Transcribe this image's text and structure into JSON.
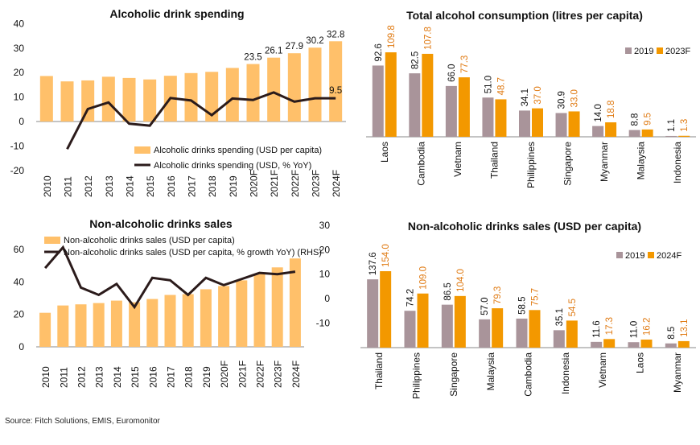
{
  "source": "Source: Fitch Solutions, EMIS, Euromonitor",
  "colors": {
    "bar": "#FFC06A",
    "line": "#2B1B1B",
    "grey": "#A9949A",
    "orange": "#F39800",
    "orange_text": "#E07B14"
  },
  "chart_data": [
    {
      "id": "spending",
      "type": "bar",
      "title": "Alcoholic drink spending",
      "categories": [
        "2010",
        "2011",
        "2012",
        "2013",
        "2014",
        "2015",
        "2016",
        "2017",
        "2018",
        "2019",
        "2020F",
        "2021F",
        "2022F",
        "2023F",
        "2024F"
      ],
      "series": [
        {
          "name": "Alcoholic drinks spending (USD per capita)",
          "type": "bar",
          "values": [
            18.6,
            16.4,
            16.8,
            18.3,
            17.8,
            17.2,
            18.7,
            19.8,
            20.3,
            21.9,
            23.5,
            26.1,
            27.9,
            30.2,
            32.8
          ]
        },
        {
          "name": "Alcoholic drinks spending (USD, % YoY)",
          "type": "line",
          "values": [
            null,
            -11.3,
            5.1,
            7.8,
            -0.9,
            -1.7,
            9.6,
            8.6,
            2.6,
            9.4,
            8.8,
            11.9,
            8.1,
            9.5,
            9.5
          ]
        }
      ],
      "data_labels": {
        "10": "23.5",
        "11": "26.1",
        "12": "27.9",
        "13": "30.2",
        "14": "32.8",
        "line_14": "9.5"
      },
      "yticks": [
        "40",
        "30",
        "20",
        "10",
        "0",
        "-10",
        "-20"
      ],
      "ylim": [
        -20,
        40
      ],
      "legend": "bottom-right"
    },
    {
      "id": "consumption",
      "type": "bar",
      "title": "Total alcohol consumption (litres per capita)",
      "categories": [
        "Laos",
        "Cambodia",
        "Vietnam",
        "Thailand",
        "Philippines",
        "Singapore",
        "Myanmar",
        "Malaysia",
        "Indonesia"
      ],
      "series": [
        {
          "name": "2019",
          "values": [
            92.6,
            82.5,
            66.0,
            51.0,
            34.1,
            30.9,
            14.0,
            8.8,
            1.1
          ],
          "labels": [
            "92.6",
            "82.5",
            "66.0",
            "51.0",
            "34.1",
            "30.9",
            "14.0",
            "8.8",
            "1.1"
          ]
        },
        {
          "name": "2023F",
          "values": [
            109.8,
            107.8,
            77.3,
            48.7,
            37.0,
            33.0,
            18.8,
            9.5,
            1.3
          ],
          "labels": [
            "109.8",
            "107.8",
            "77.3",
            "48.7",
            "37.0",
            "33.0",
            "18.8",
            "9.5",
            "1.3"
          ]
        }
      ],
      "legend": "top-right"
    },
    {
      "id": "nonalc",
      "type": "bar",
      "title": "Non-alcoholic drinks sales",
      "categories": [
        "2010",
        "2011",
        "2012",
        "2013",
        "2014",
        "2015",
        "2016",
        "2017",
        "2018",
        "2019",
        "2020F",
        "2021F",
        "2022F",
        "2023F",
        "2024F"
      ],
      "series": [
        {
          "name": "Non-alcoholic drinks sales (USD per capita)",
          "type": "bar",
          "values": [
            21,
            25.5,
            26.2,
            27,
            28.5,
            27.5,
            29.5,
            32,
            32.5,
            35.5,
            37.5,
            41,
            45,
            49,
            54.5
          ]
        },
        {
          "name": "Non-alcoholic drinks sales (USD per capita, % growth YoY) (RHS)",
          "type": "line",
          "axis": "right",
          "values": [
            12.5,
            21,
            4.5,
            1.5,
            6,
            -3.5,
            8.5,
            7.5,
            1.5,
            8.5,
            5.5,
            8,
            10.5,
            10,
            11
          ]
        }
      ],
      "yticks_left": [
        "60",
        "40",
        "20",
        "0"
      ],
      "yticks_right": [
        "30",
        "20",
        "10",
        "0",
        "-10"
      ],
      "ylim_left": [
        0,
        60
      ],
      "ylim_right": [
        -10,
        30
      ],
      "legend": "top-left"
    },
    {
      "id": "nonalc_country",
      "type": "bar",
      "title": "Non-alcoholic drinks sales (USD per capita)",
      "categories": [
        "Thailand",
        "Philippines",
        "Singapore",
        "Malaysia",
        "Cambodia",
        "Indonesia",
        "Vietnam",
        "Laos",
        "Myanmar"
      ],
      "series": [
        {
          "name": "2019",
          "values": [
            137.6,
            74.2,
            86.5,
            57.0,
            58.5,
            35.1,
            11.6,
            11.0,
            8.5
          ],
          "labels": [
            "137.6",
            "74.2",
            "86.5",
            "57.0",
            "58.5",
            "35.1",
            "11.6",
            "11.0",
            "8.5"
          ]
        },
        {
          "name": "2024F",
          "values": [
            154.0,
            109.0,
            104.0,
            79.3,
            75.7,
            54.5,
            17.3,
            16.2,
            13.1
          ],
          "labels": [
            "154.0",
            "109.0",
            "104.0",
            "79.3",
            "75.7",
            "54.5",
            "17.3",
            "16.2",
            "13.1"
          ]
        }
      ],
      "legend": "top-right"
    }
  ]
}
